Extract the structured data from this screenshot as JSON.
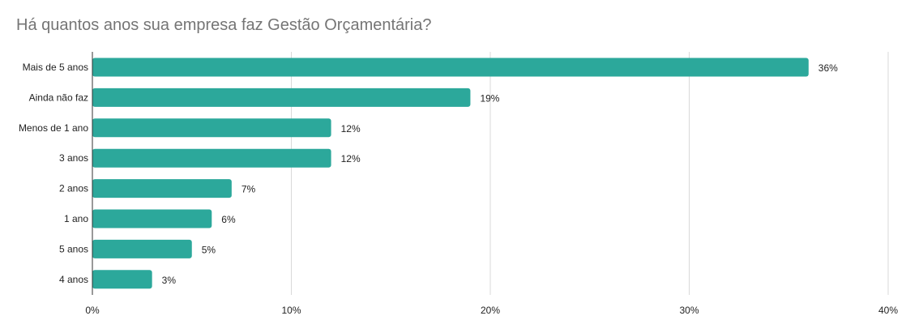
{
  "chart_data": {
    "type": "bar",
    "orientation": "horizontal",
    "title": "Há quantos anos sua empresa faz Gestão Orçamentária?",
    "xlabel": "",
    "ylabel": "",
    "categories": [
      "Mais de 5 anos",
      "Ainda não faz",
      "Menos de 1 ano",
      "3 anos",
      "2 anos",
      "1 ano",
      "5 anos",
      "4 anos"
    ],
    "values": [
      36,
      19,
      12,
      12,
      7,
      6,
      5,
      3
    ],
    "data_labels": [
      "36%",
      "19%",
      "12%",
      "12%",
      "7%",
      "6%",
      "5%",
      "3%"
    ],
    "xlim": [
      0,
      40
    ],
    "x_ticks": [
      0,
      10,
      20,
      30,
      40
    ],
    "x_tick_labels": [
      "0%",
      "10%",
      "20%",
      "30%",
      "40%"
    ],
    "grid": true,
    "legend": "none",
    "colors": {
      "bar": "#2ca89b",
      "grid": "#d9d9d9",
      "axis": "#333333",
      "title": "#757575",
      "text": "#222222"
    }
  }
}
